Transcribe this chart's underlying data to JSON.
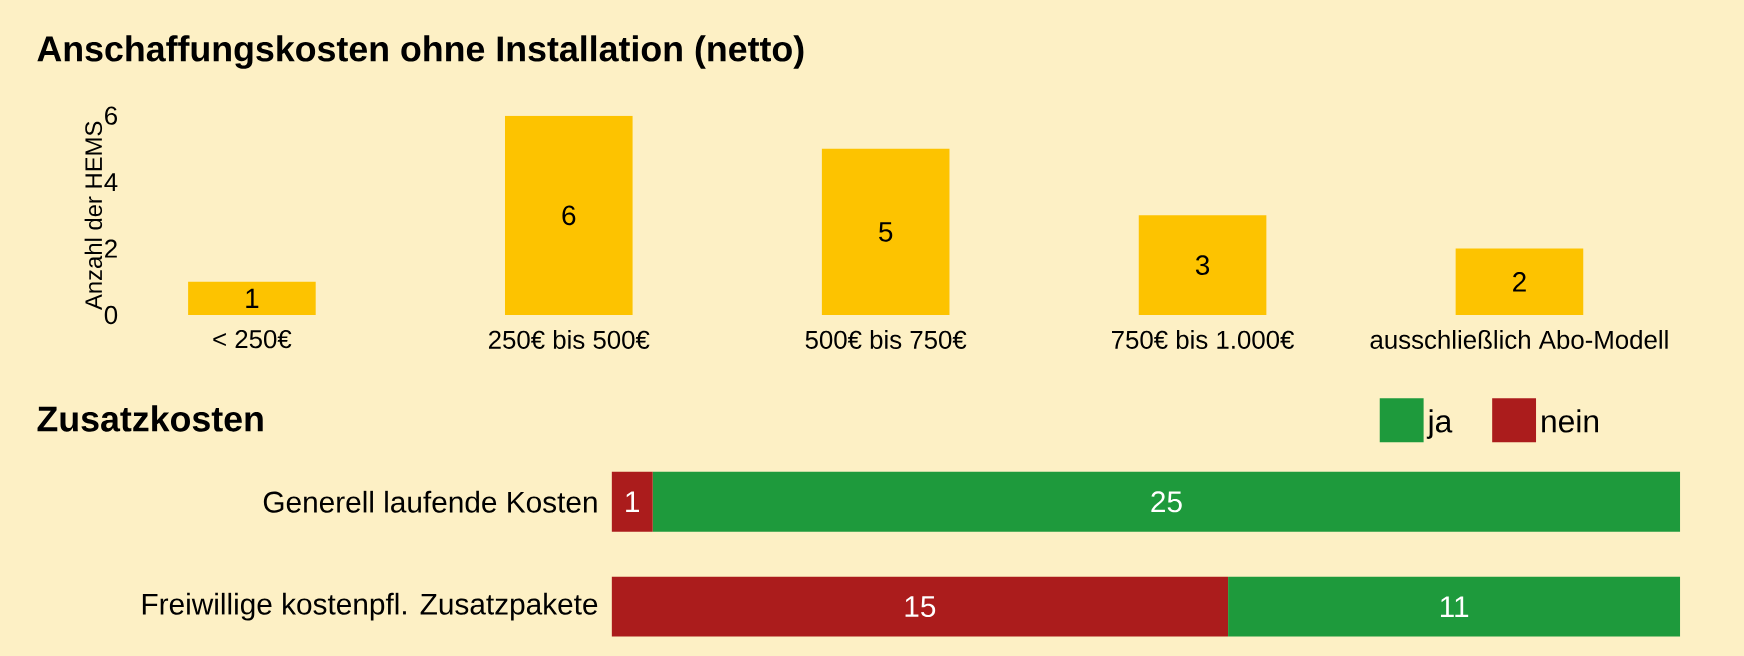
{
  "chart_data": [
    {
      "type": "bar",
      "title": "Anschaffungskosten ohne Installation (netto)",
      "ylabel": "Anzahl der HEMS",
      "categories": [
        "< 250€",
        "250€ bis 500€",
        "500€ bis 750€",
        "750€ bis 1.000€",
        "ausschließlich Abo-Modell"
      ],
      "values": [
        1,
        6,
        5,
        3,
        2
      ],
      "color": "#fdc300",
      "ylim": [
        0,
        6
      ],
      "yticks": [
        0,
        2,
        4,
        6
      ],
      "data_labels": true
    },
    {
      "type": "bar",
      "orientation": "horizontal",
      "stacked": true,
      "title": "Zusatzkosten",
      "categories": [
        "Generell laufende Kosten",
        "Freiwillige kostenpfl. Zusatzpakete"
      ],
      "series": [
        {
          "name": "nein",
          "color": "#ab1c1c",
          "values": [
            1,
            15
          ]
        },
        {
          "name": "ja",
          "color": "#1e9a3c",
          "values": [
            25,
            11
          ]
        }
      ],
      "legend": "top right",
      "data_labels": true
    }
  ]
}
